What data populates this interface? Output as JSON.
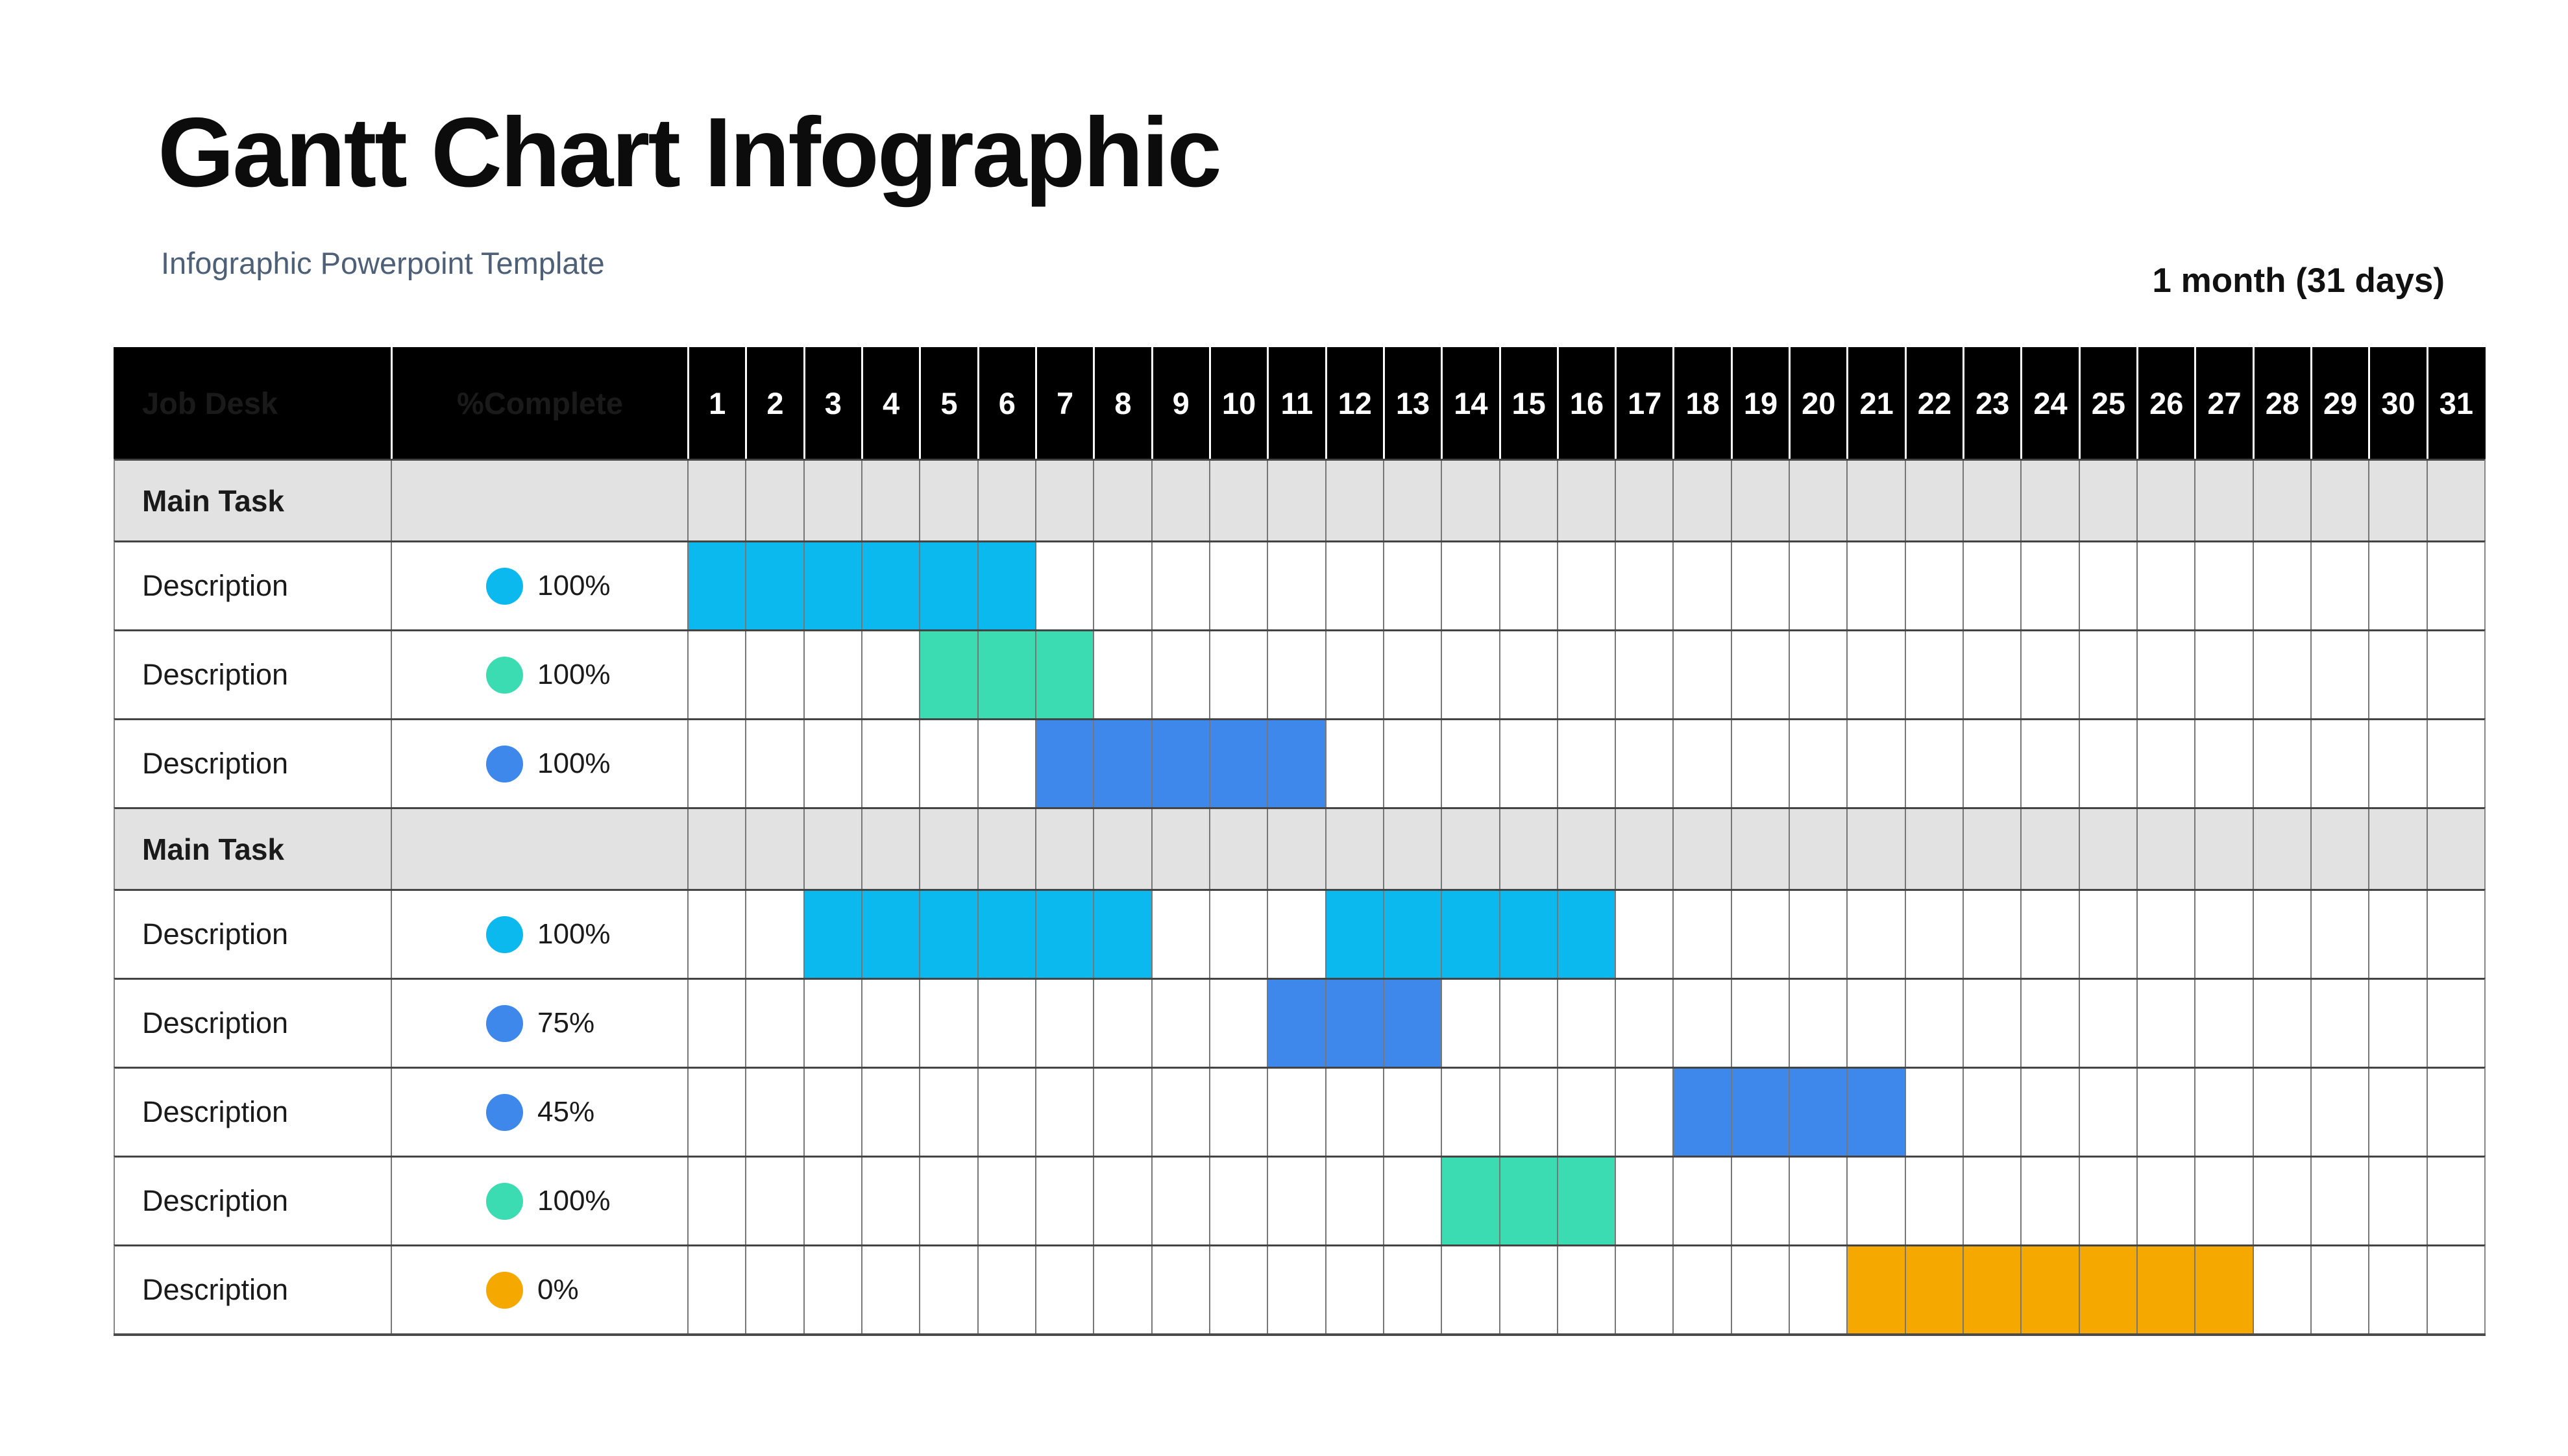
{
  "title": "Gantt Chart Infographic",
  "subtitle": "Infographic Powerpoint Template",
  "duration_label": "1 month (31 days)",
  "table": {
    "job_desk_header": "Job Desk",
    "complete_header": "%Complete"
  },
  "chart_data": {
    "type": "table",
    "title": "Gantt Chart Infographic",
    "subtitle": "Infographic Powerpoint Template",
    "duration_label": "1 month (31 days)",
    "days": [
      1,
      2,
      3,
      4,
      5,
      6,
      7,
      8,
      9,
      10,
      11,
      12,
      13,
      14,
      15,
      16,
      17,
      18,
      19,
      20,
      21,
      22,
      23,
      24,
      25,
      26,
      27,
      28,
      29,
      30,
      31
    ],
    "colors": {
      "cyan": "#0bb9ef",
      "green": "#3bdcb1",
      "blue": "#3d88ea",
      "orange": "#f5a800"
    },
    "sections": [
      {
        "label": "Main Task",
        "tasks": [
          {
            "label": "Description",
            "percent": "100%",
            "color_key": "cyan",
            "segments": [
              [
                1,
                6
              ]
            ]
          },
          {
            "label": "Description",
            "percent": "100%",
            "color_key": "green",
            "segments": [
              [
                5,
                7
              ]
            ]
          },
          {
            "label": "Description",
            "percent": "100%",
            "color_key": "blue",
            "segments": [
              [
                7,
                11
              ]
            ]
          }
        ]
      },
      {
        "label": "Main Task",
        "tasks": [
          {
            "label": "Description",
            "percent": "100%",
            "color_key": "cyan",
            "segments": [
              [
                3,
                8
              ],
              [
                12,
                16
              ]
            ]
          },
          {
            "label": "Description",
            "percent": "75%",
            "color_key": "blue",
            "segments": [
              [
                11,
                13
              ]
            ]
          },
          {
            "label": "Description",
            "percent": "45%",
            "color_key": "blue",
            "segments": [
              [
                18,
                21
              ]
            ]
          },
          {
            "label": "Description",
            "percent": "100%",
            "color_key": "green",
            "segments": [
              [
                14,
                16
              ]
            ]
          },
          {
            "label": "Description",
            "percent": "0%",
            "color_key": "orange",
            "segments": [
              [
                21,
                27
              ]
            ]
          }
        ]
      }
    ]
  }
}
